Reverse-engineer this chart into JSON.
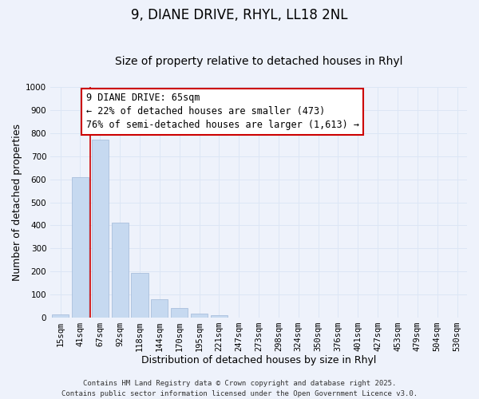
{
  "title": "9, DIANE DRIVE, RHYL, LL18 2NL",
  "subtitle": "Size of property relative to detached houses in Rhyl",
  "xlabel": "Distribution of detached houses by size in Rhyl",
  "ylabel": "Number of detached properties",
  "bar_color": "#c6d9f0",
  "bar_edge_color": "#a0b8d8",
  "vline_color": "#cc0000",
  "categories": [
    "15sqm",
    "41sqm",
    "67sqm",
    "92sqm",
    "118sqm",
    "144sqm",
    "170sqm",
    "195sqm",
    "221sqm",
    "247sqm",
    "273sqm",
    "298sqm",
    "324sqm",
    "350sqm",
    "376sqm",
    "401sqm",
    "427sqm",
    "453sqm",
    "479sqm",
    "504sqm",
    "530sqm"
  ],
  "values": [
    15,
    608,
    773,
    413,
    193,
    78,
    40,
    16,
    10,
    0,
    0,
    0,
    0,
    0,
    0,
    0,
    0,
    0,
    0,
    0,
    0
  ],
  "ylim": [
    0,
    1000
  ],
  "yticks": [
    0,
    100,
    200,
    300,
    400,
    500,
    600,
    700,
    800,
    900,
    1000
  ],
  "annotation_title": "9 DIANE DRIVE: 65sqm",
  "annotation_line1": "← 22% of detached houses are smaller (473)",
  "annotation_line2": "76% of semi-detached houses are larger (1,613) →",
  "footer_line1": "Contains HM Land Registry data © Crown copyright and database right 2025.",
  "footer_line2": "Contains public sector information licensed under the Open Government Licence v3.0.",
  "background_color": "#eef2fb",
  "grid_color": "#dce6f5",
  "title_fontsize": 12,
  "subtitle_fontsize": 10,
  "axis_label_fontsize": 9,
  "tick_fontsize": 7.5,
  "annotation_fontsize": 8.5,
  "footer_fontsize": 6.5
}
